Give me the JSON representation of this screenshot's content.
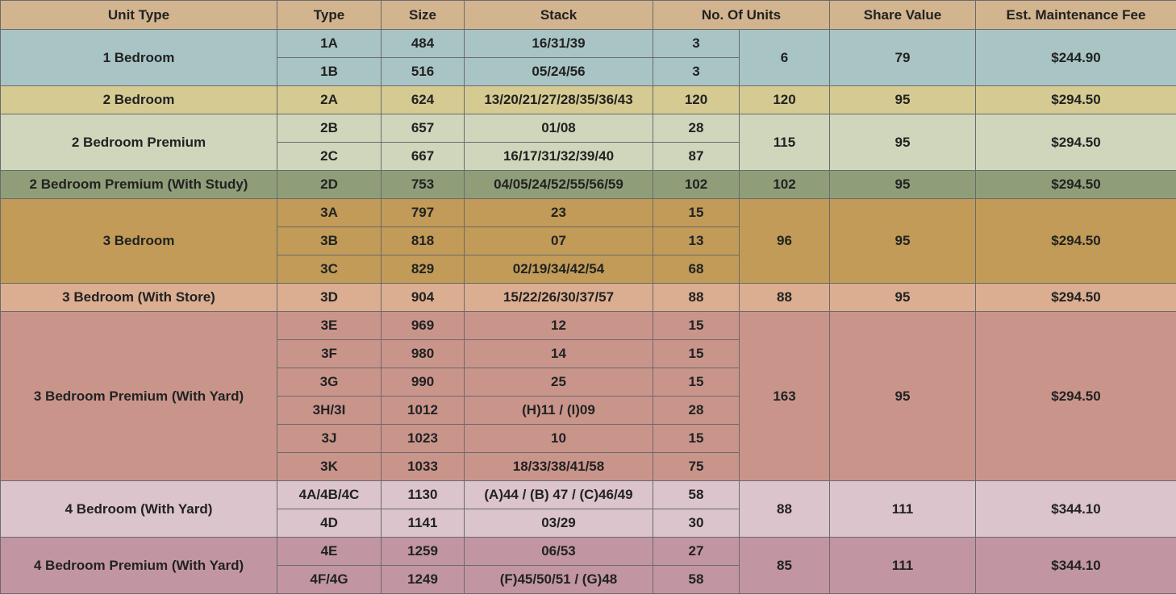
{
  "header": [
    "Unit Type",
    "Type",
    "Size",
    "Stack",
    "No. Of Units",
    "Share Value",
    "Est. Maintenance Fee"
  ],
  "header_color": "#d2b48f",
  "groups": [
    {
      "unit_type": "1 Bedroom",
      "color": "#a9c4c5",
      "rows": [
        [
          "1A",
          484,
          "16/31/39",
          3
        ],
        [
          "1B",
          516,
          "05/24/56",
          3
        ]
      ],
      "total": 6,
      "share_value": 79,
      "fee": "$244.90"
    },
    {
      "unit_type": "2 Bedroom",
      "color": "#d5cb92",
      "rows": [
        [
          "2A",
          624,
          "13/20/21/27/28/35/36/43",
          120
        ]
      ],
      "total": 120,
      "share_value": 95,
      "fee": "$294.50"
    },
    {
      "unit_type": "2 Bedroom Premium",
      "color": "#cfd6bc",
      "rows": [
        [
          "2B",
          657,
          "01/08",
          28
        ],
        [
          "2C",
          667,
          "16/17/31/32/39/40",
          87
        ]
      ],
      "total": 115,
      "share_value": 95,
      "fee": "$294.50"
    },
    {
      "unit_type": "2 Bedroom Premium (With Study)",
      "color": "#8f9e79",
      "rows": [
        [
          "2D",
          753,
          "04/05/24/52/55/56/59",
          102
        ]
      ],
      "total": 102,
      "share_value": 95,
      "fee": "$294.50"
    },
    {
      "unit_type": "3 Bedroom",
      "color": "#c19b57",
      "rows": [
        [
          "3A",
          797,
          "23",
          15
        ],
        [
          "3B",
          818,
          "07",
          13
        ],
        [
          "3C",
          829,
          "02/19/34/42/54",
          68
        ]
      ],
      "total": 96,
      "share_value": 95,
      "fee": "$294.50"
    },
    {
      "unit_type": "3 Bedroom (With Store)",
      "color": "#dbae91",
      "rows": [
        [
          "3D",
          904,
          "15/22/26/30/37/57",
          88
        ]
      ],
      "total": 88,
      "share_value": 95,
      "fee": "$294.50"
    },
    {
      "unit_type": "3 Bedroom Premium (With Yard)",
      "color": "#c9958b",
      "rows": [
        [
          "3E",
          969,
          "12",
          15
        ],
        [
          "3F",
          980,
          "14",
          15
        ],
        [
          "3G",
          990,
          "25",
          15
        ],
        [
          "3H/3I",
          1012,
          "(H)11 / (I)09",
          28
        ],
        [
          "3J",
          1023,
          "10",
          15
        ],
        [
          "3K",
          1033,
          "18/33/38/41/58",
          75
        ]
      ],
      "total": 163,
      "share_value": 95,
      "fee": "$294.50"
    },
    {
      "unit_type": "4 Bedroom (With Yard)",
      "color": "#dbc4cb",
      "rows": [
        [
          "4A/4B/4C",
          1130,
          "(A)44 / (B) 47 / (C)46/49",
          58
        ],
        [
          "4D",
          1141,
          "03/29",
          30
        ]
      ],
      "total": 88,
      "share_value": 111,
      "fee": "$344.10"
    },
    {
      "unit_type": "4 Bedroom Premium (With Yard)",
      "color": "#c196a2",
      "rows": [
        [
          "4E",
          1259,
          "06/53",
          27
        ],
        [
          "4F/4G",
          1249,
          "(F)45/50/51 / (G)48",
          58
        ]
      ],
      "total": 85,
      "share_value": 111,
      "fee": "$344.10"
    }
  ]
}
